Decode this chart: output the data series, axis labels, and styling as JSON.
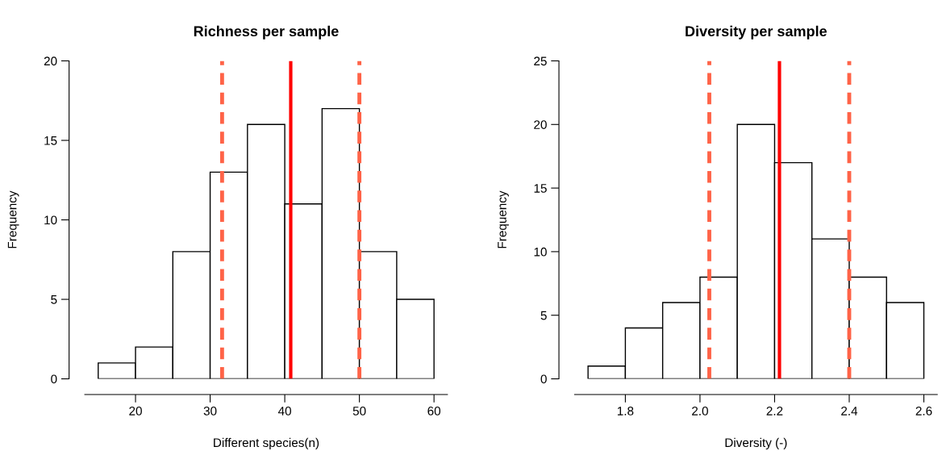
{
  "chart_data": [
    {
      "type": "histogram",
      "title": "Richness per sample",
      "xlabel": "Different species(n)",
      "ylabel": "Frequency",
      "bins": [
        15,
        20,
        25,
        30,
        35,
        40,
        45,
        50,
        55,
        60
      ],
      "values": [
        1,
        2,
        8,
        13,
        16,
        11,
        17,
        8,
        5
      ],
      "color": "#ffffff",
      "xlim": [
        13.2,
        61.8
      ],
      "xticks": [
        20,
        30,
        40,
        50,
        60
      ],
      "ylim": [
        0,
        20
      ],
      "yticks": [
        0,
        5,
        10,
        15,
        20
      ],
      "grid": false,
      "ref_lines": [
        {
          "axis": "x",
          "value": 31.6,
          "color": "#ff6347",
          "line_style": "dashed"
        },
        {
          "axis": "x",
          "value": 40.8,
          "color": "#ff0000",
          "line_style": "solid"
        },
        {
          "axis": "x",
          "value": 50.0,
          "color": "#ff6347",
          "line_style": "dashed"
        }
      ]
    },
    {
      "type": "histogram",
      "title": "Diversity per sample",
      "xlabel": "Diversity (-)",
      "ylabel": "Frequency",
      "bins": [
        1.7,
        1.8,
        1.9,
        2.0,
        2.1,
        2.2,
        2.3,
        2.4,
        2.5,
        2.6
      ],
      "values": [
        1,
        4,
        6,
        8,
        20,
        17,
        11,
        8,
        6
      ],
      "color": "#ffffff",
      "xlim": [
        1.664,
        2.636
      ],
      "xticks": [
        {
          "value": 1.8,
          "label": "1.8"
        },
        {
          "value": 2.0,
          "label": "2.0"
        },
        {
          "value": 2.2,
          "label": "2.2"
        },
        {
          "value": 2.4,
          "label": "2.4"
        },
        {
          "value": 2.6,
          "label": "2.6"
        }
      ],
      "ylim": [
        0,
        25
      ],
      "yticks": [
        0,
        5,
        10,
        15,
        20,
        25
      ],
      "grid": false,
      "ref_lines": [
        {
          "axis": "x",
          "value": 2.025,
          "color": "#ff6347",
          "line_style": "dashed"
        },
        {
          "axis": "x",
          "value": 2.213,
          "color": "#ff0000",
          "line_style": "solid"
        },
        {
          "axis": "x",
          "value": 2.4,
          "color": "#ff6347",
          "line_style": "dashed"
        }
      ]
    }
  ]
}
